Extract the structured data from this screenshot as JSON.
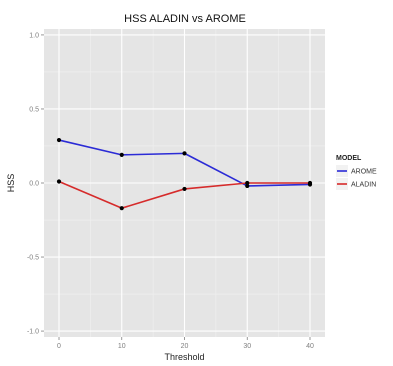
{
  "chart_data": {
    "type": "line",
    "title": "HSS ALADIN vs AROME",
    "xlabel": "Threshold",
    "ylabel": "HSS",
    "x": [
      0,
      10,
      20,
      30,
      40
    ],
    "xlim": [
      0,
      40
    ],
    "ylim": [
      -1.0,
      1.0
    ],
    "x_ticks": [
      "0",
      "10",
      "20",
      "30",
      "40"
    ],
    "y_ticks": [
      "-1.0",
      "-0.5",
      "0.0",
      "0.5",
      "1.0"
    ],
    "y_tick_values": [
      -1.0,
      -0.5,
      0.0,
      0.5,
      1.0
    ],
    "grid": true,
    "legend": {
      "title": "MODEL",
      "position": "right"
    },
    "series": [
      {
        "name": "AROME",
        "color": "#2b2bd6",
        "values": [
          0.29,
          0.19,
          0.2,
          -0.02,
          -0.01
        ]
      },
      {
        "name": "ALADIN",
        "color": "#d62b2b",
        "values": [
          0.01,
          -0.17,
          -0.04,
          0.0,
          0.0
        ]
      }
    ]
  }
}
